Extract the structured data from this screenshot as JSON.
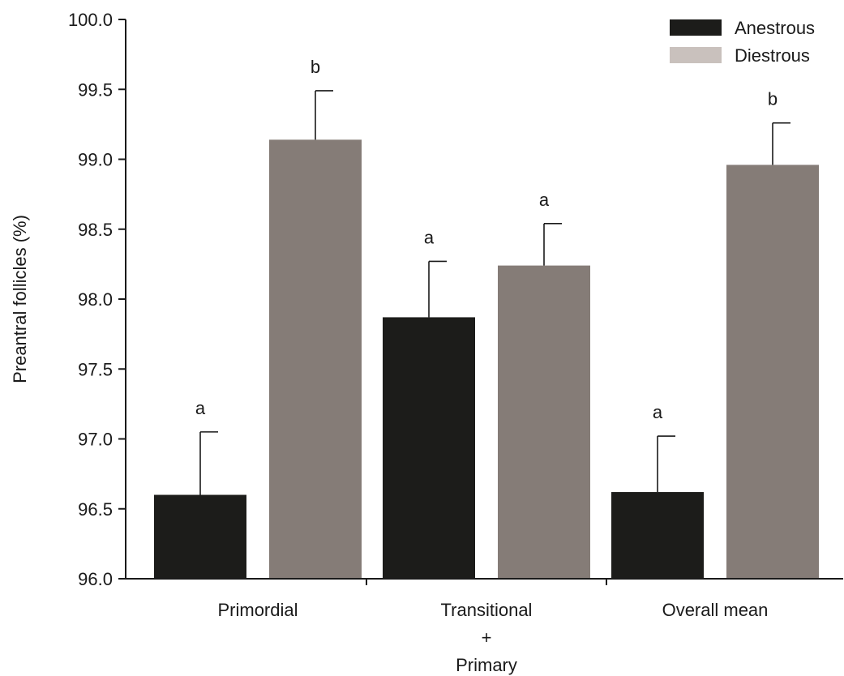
{
  "chart_data": {
    "type": "bar",
    "title": "",
    "xlabel": "",
    "ylabel": "Preantral follicles (%)",
    "ylim": [
      96.0,
      100.0
    ],
    "yticks": [
      "96.0",
      "96.5",
      "97.0",
      "97.5",
      "98.0",
      "98.5",
      "99.0",
      "99.5",
      "100.0"
    ],
    "grid": false,
    "legend_position": "top-right",
    "categories": [
      {
        "lines": [
          "Primordial"
        ]
      },
      {
        "lines": [
          "Transitional",
          "+",
          "Primary"
        ]
      },
      {
        "lines": [
          "Overall mean"
        ]
      }
    ],
    "series": [
      {
        "name": "Anestrous",
        "color": "#1c1c1a",
        "values": [
          96.6,
          97.87,
          96.62
        ],
        "errors": [
          0.45,
          0.4,
          0.4
        ],
        "significance": [
          "a",
          "a",
          "a"
        ]
      },
      {
        "name": "Diestrous",
        "color": "#857c77",
        "legend_color": "#c9c1bd",
        "values": [
          99.14,
          98.24,
          98.96
        ],
        "errors": [
          0.35,
          0.3,
          0.3
        ],
        "significance": [
          "b",
          "a",
          "b"
        ]
      }
    ]
  }
}
